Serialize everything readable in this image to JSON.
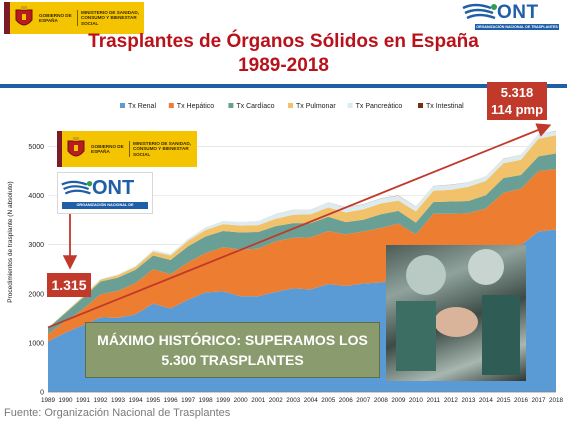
{
  "header": {
    "gov_line1": "GOBIERNO DE ESPAÑA",
    "gov_line2": "MINISTERIO DE SANIDAD, CONSUMO Y BIENESTAR SOCIAL",
    "ont_word": "ONT",
    "ont_sub": "ORGANIZACIÓN NACIONAL DE TRASPLANTES",
    "title_line1": "Trasplantes de Órganos Sólidos en España",
    "title_line2": "1989-2018"
  },
  "colors": {
    "renal": "#5b9bd5",
    "hepatico": "#ed7d31",
    "cardiaco": "#6a9f95",
    "pulmonar": "#f2c26b",
    "pancreatico": "#dcebf0",
    "intestinal": "#7b2e14",
    "arrow": "#c0392b",
    "title": "#b9121b"
  },
  "chart_data": {
    "type": "area",
    "stacked": true,
    "title": "",
    "xlabel": "",
    "ylabel": "Procedimientos de trasplante (N absoluto)",
    "ylim": [
      0,
      5500
    ],
    "yticks": [
      0,
      1000,
      2000,
      3000,
      4000,
      5000
    ],
    "grid": true,
    "legend_position": "top",
    "x": [
      1989,
      1990,
      1991,
      1992,
      1993,
      1994,
      1995,
      1996,
      1997,
      1998,
      1999,
      2000,
      2001,
      2002,
      2003,
      2004,
      2005,
      2006,
      2007,
      2008,
      2009,
      2010,
      2011,
      2012,
      2013,
      2014,
      2015,
      2016,
      2017,
      2018
    ],
    "series": [
      {
        "name": "Tx Renal",
        "color_key": "renal",
        "values": [
          1030,
          1210,
          1360,
          1520,
          1510,
          1580,
          1800,
          1700,
          1880,
          2030,
          2050,
          1950,
          1950,
          2040,
          2110,
          2090,
          2200,
          2160,
          2210,
          2230,
          2330,
          2230,
          2490,
          2550,
          2550,
          2680,
          2900,
          2990,
          3270,
          3310
        ]
      },
      {
        "name": "Tx Hepático",
        "color_key": "hepatico",
        "values": [
          150,
          230,
          330,
          470,
          550,
          640,
          700,
          700,
          760,
          800,
          900,
          950,
          970,
          1030,
          1030,
          1060,
          1080,
          1050,
          1060,
          1110,
          1100,
          980,
          1140,
          1080,
          1090,
          1060,
          1160,
          1150,
          1230,
          1230
        ]
      },
      {
        "name": "Tx Cardíaco",
        "color_key": "cardiaco",
        "values": [
          120,
          170,
          230,
          260,
          270,
          270,
          280,
          290,
          330,
          340,
          330,
          350,
          340,
          310,
          300,
          290,
          290,
          250,
          240,
          280,
          260,
          240,
          240,
          250,
          250,
          270,
          300,
          280,
          300,
          320
        ]
      },
      {
        "name": "Tx Pulmonar",
        "color_key": "pulmonar",
        "values": [
          10,
          20,
          30,
          40,
          50,
          60,
          80,
          90,
          110,
          130,
          140,
          140,
          140,
          150,
          170,
          180,
          190,
          200,
          210,
          220,
          210,
          230,
          230,
          240,
          290,
          290,
          300,
          310,
          360,
          370
        ]
      },
      {
        "name": "Tx Pancreático",
        "color_key": "pancreatico",
        "values": [
          5,
          10,
          15,
          20,
          25,
          30,
          40,
          40,
          50,
          60,
          70,
          70,
          80,
          90,
          100,
          90,
          100,
          100,
          100,
          100,
          100,
          90,
          90,
          100,
          90,
          90,
          90,
          100,
          100,
          80
        ]
      },
      {
        "name": "Tx Intestinal",
        "color_key": "intestinal",
        "values": [
          0,
          0,
          0,
          0,
          0,
          0,
          0,
          0,
          0,
          2,
          2,
          3,
          3,
          5,
          5,
          6,
          6,
          8,
          8,
          8,
          10,
          8,
          8,
          8,
          6,
          5,
          6,
          6,
          4,
          8
        ]
      }
    ]
  },
  "annotations": {
    "left_value": "1.315",
    "top_value": "5.318",
    "top_rate": "114 pmp",
    "banner_line1": "MÁXIMO HISTÓRICO: SUPERAMOS LOS",
    "banner_line2": "5.300 TRASPLANTES"
  },
  "footer": {
    "source": "Fuente: Organización Nacional de Trasplantes"
  }
}
